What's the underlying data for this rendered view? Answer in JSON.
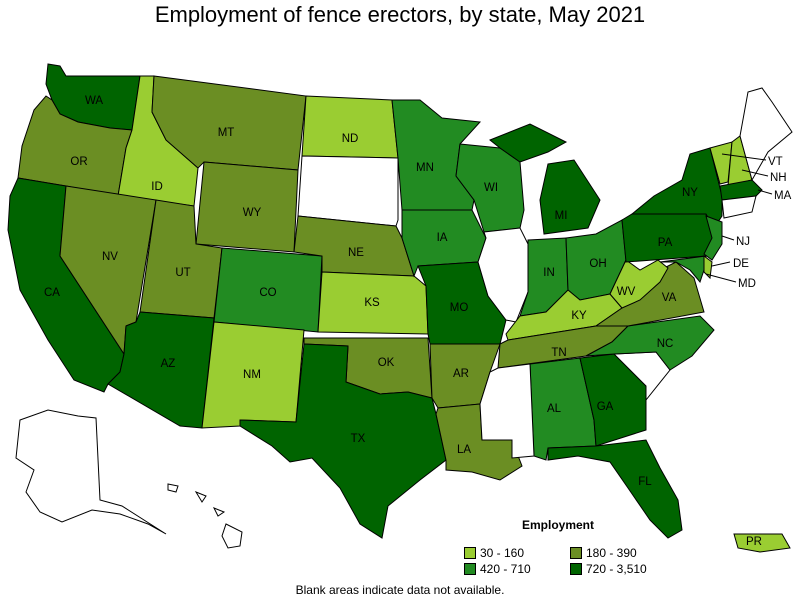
{
  "title": "Employment of fence erectors, by state, May 2021",
  "note": "Blank areas indicate data not available.",
  "legend": {
    "title": "Employment",
    "items": [
      {
        "label": "30 - 160",
        "color": "#9acd32"
      },
      {
        "label": "180 - 390",
        "color": "#6b8e23"
      },
      {
        "label": "420 - 710",
        "color": "#228b22"
      },
      {
        "label": "720 - 3,510",
        "color": "#006400"
      }
    ]
  },
  "states": {
    "WA": {
      "label": "WA",
      "class": "720 - 3,510"
    },
    "OR": {
      "label": "OR",
      "class": "180 - 390"
    },
    "CA": {
      "label": "CA",
      "class": "720 - 3,510"
    },
    "ID": {
      "label": "ID",
      "class": "30 - 160"
    },
    "NV": {
      "label": "NV",
      "class": "180 - 390"
    },
    "MT": {
      "label": "MT",
      "class": "180 - 390"
    },
    "WY": {
      "label": "WY",
      "class": "180 - 390"
    },
    "UT": {
      "label": "UT",
      "class": "180 - 390"
    },
    "AZ": {
      "label": "AZ",
      "class": "720 - 3,510"
    },
    "CO": {
      "label": "CO",
      "class": "420 - 710"
    },
    "NM": {
      "label": "NM",
      "class": "30 - 160"
    },
    "ND": {
      "label": "ND",
      "class": "30 - 160"
    },
    "NE": {
      "label": "NE",
      "class": "180 - 390"
    },
    "KS": {
      "label": "KS",
      "class": "30 - 160"
    },
    "OK": {
      "label": "OK",
      "class": "180 - 390"
    },
    "TX": {
      "label": "TX",
      "class": "720 - 3,510"
    },
    "MN": {
      "label": "MN",
      "class": "420 - 710"
    },
    "IA": {
      "label": "IA",
      "class": "420 - 710"
    },
    "MO": {
      "label": "MO",
      "class": "720 - 3,510"
    },
    "AR": {
      "label": "AR",
      "class": "180 - 390"
    },
    "LA": {
      "label": "LA",
      "class": "180 - 390"
    },
    "WI": {
      "label": "WI",
      "class": "420 - 710"
    },
    "MI": {
      "label": "MI",
      "class": "720 - 3,510"
    },
    "IN": {
      "label": "IN",
      "class": "420 - 710"
    },
    "OH": {
      "label": "OH",
      "class": "420 - 710"
    },
    "KY": {
      "label": "KY",
      "class": "30 - 160"
    },
    "TN": {
      "label": "TN",
      "class": "180 - 390"
    },
    "AL": {
      "label": "AL",
      "class": "420 - 710"
    },
    "GA": {
      "label": "GA",
      "class": "720 - 3,510"
    },
    "FL": {
      "label": "FL",
      "class": "720 - 3,510"
    },
    "NC": {
      "label": "NC",
      "class": "420 - 710"
    },
    "VA": {
      "label": "VA",
      "class": "180 - 390"
    },
    "WV": {
      "label": "WV",
      "class": "30 - 160"
    },
    "PA": {
      "label": "PA",
      "class": "720 - 3,510"
    },
    "NY": {
      "label": "NY",
      "class": "720 - 3,510"
    },
    "NJ": {
      "label": "NJ",
      "class": "420 - 710"
    },
    "DE": {
      "label": "DE",
      "class": "30 - 160"
    },
    "MD": {
      "label": "MD",
      "class": "420 - 710"
    },
    "VT": {
      "label": "VT",
      "class": "30 - 160"
    },
    "NH": {
      "label": "NH",
      "class": "30 - 160"
    },
    "MA": {
      "label": "MA",
      "class": "720 - 3,510"
    },
    "PR": {
      "label": "PR",
      "class": "30 - 160"
    }
  }
}
